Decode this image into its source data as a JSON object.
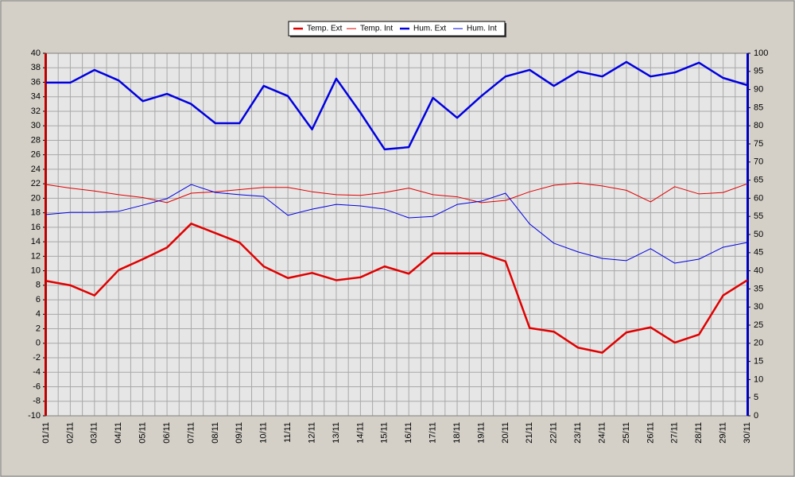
{
  "chart_data": {
    "type": "line",
    "categories": [
      "01/11",
      "02/11",
      "03/11",
      "04/11",
      "05/11",
      "06/11",
      "07/11",
      "08/11",
      "09/11",
      "10/11",
      "11/11",
      "12/11",
      "13/11",
      "14/11",
      "15/11",
      "16/11",
      "17/11",
      "18/11",
      "19/11",
      "20/11",
      "21/11",
      "22/11",
      "23/11",
      "24/11",
      "25/11",
      "26/11",
      "27/11",
      "28/11",
      "29/11",
      "30/11"
    ],
    "series": [
      {
        "name": "Temp. Ext",
        "color": "#e00000",
        "width": 2.5,
        "values": [
          8.6,
          8.0,
          6.6,
          10.1,
          11.6,
          13.2,
          16.5,
          15.2,
          13.9,
          10.6,
          9.0,
          9.7,
          8.7,
          9.1,
          10.6,
          9.6,
          12.4,
          12.4,
          12.4,
          11.3,
          2.1,
          1.6,
          -0.6,
          -1.3,
          1.5,
          2.2,
          0.1,
          1.2,
          6.6,
          8.7
        ]
      },
      {
        "name": "Temp. Int",
        "color": "#e00000",
        "width": 1,
        "values": [
          21.9,
          21.4,
          21.0,
          20.5,
          20.1,
          19.4,
          20.7,
          20.9,
          21.2,
          21.5,
          21.5,
          20.9,
          20.5,
          20.4,
          20.8,
          21.4,
          20.5,
          20.2,
          19.4,
          19.7,
          20.9,
          21.8,
          22.1,
          21.7,
          21.1,
          19.5,
          21.6,
          20.6,
          20.8,
          22.0
        ]
      },
      {
        "name": "Hum. Ext",
        "color": "#0000e0",
        "width": 2.5,
        "axis": "y2",
        "values": [
          91.9,
          91.9,
          95.4,
          92.5,
          86.8,
          88.8,
          86.0,
          80.7,
          80.7,
          91.0,
          88.2,
          79.0,
          93.0,
          83.6,
          73.5,
          74.1,
          87.7,
          82.2,
          88.2,
          93.6,
          95.4,
          91.0,
          95.0,
          93.6,
          97.6,
          93.6,
          94.7,
          97.4,
          93.2,
          91.2
        ]
      },
      {
        "name": "Hum. Int",
        "color": "#0000e0",
        "width": 1,
        "axis": "y2",
        "values": [
          55.5,
          56.1,
          56.1,
          56.4,
          58.1,
          59.9,
          63.8,
          61.6,
          61.0,
          60.5,
          55.3,
          57.0,
          58.3,
          57.9,
          57.0,
          54.6,
          55.0,
          58.3,
          59.2,
          61.4,
          52.9,
          47.6,
          45.2,
          43.4,
          42.8,
          46.1,
          42.1,
          43.2,
          46.5,
          47.8
        ]
      }
    ],
    "ylim": [
      -10,
      40
    ],
    "yticks": [
      -10,
      -8,
      -6,
      -4,
      -2,
      0,
      2,
      4,
      6,
      8,
      10,
      12,
      14,
      16,
      18,
      20,
      22,
      24,
      26,
      28,
      30,
      32,
      34,
      36,
      38,
      40
    ],
    "y2lim": [
      0,
      100
    ],
    "y2ticks": [
      0,
      5,
      10,
      15,
      20,
      25,
      30,
      35,
      40,
      45,
      50,
      55,
      60,
      65,
      70,
      75,
      80,
      85,
      90,
      95,
      100
    ],
    "ycolor": "#c00000",
    "y2color": "#0000c0",
    "grid": true,
    "legend": "top"
  }
}
